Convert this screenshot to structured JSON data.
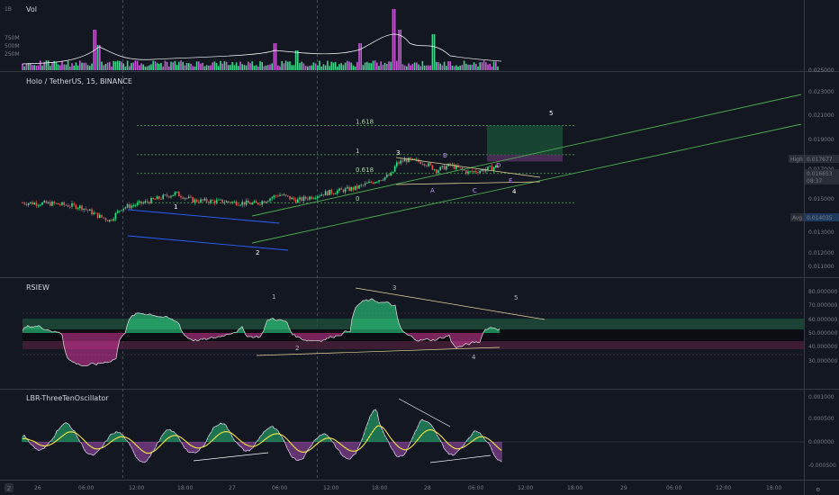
{
  "chart_data": {
    "type": "candlestick",
    "symbol_title": "Holo / TetherUS, 15, BINANCE",
    "volume_panel": {
      "title": "Vol",
      "y_ticks": [
        "1B",
        "750M",
        "500M",
        "250M"
      ]
    },
    "price_panel": {
      "y_ticks": [
        "0.025000",
        "0.023000",
        "0.021000",
        "0.019000",
        "0.017000",
        "0.015000",
        "0.013000",
        "0.012000",
        "0.011000"
      ],
      "badges": {
        "high_label": "High",
        "high_value": "0.017677",
        "last_value": "0.016653",
        "countdown": "08:37",
        "avg_label": "Avg",
        "avg_value": "0.014035"
      },
      "fib_levels": [
        {
          "label": "1.618",
          "price": 0.0205
        },
        {
          "label": "1",
          "price": 0.0177
        },
        {
          "label": "0.618",
          "price": 0.0159
        },
        {
          "label": "0",
          "price": 0.0131
        }
      ],
      "wave_labels_white": [
        "1",
        "2",
        "3",
        "4",
        "5"
      ],
      "wave_labels_purple": [
        "A",
        "B",
        "C",
        "D",
        "E"
      ]
    },
    "rsi_panel": {
      "title": "RSIEW",
      "y_ticks": [
        "80.000000",
        "70.000000",
        "60.000000",
        "50.000000",
        "40.000000",
        "30.000000"
      ],
      "wave_labels": [
        "1",
        "2",
        "3",
        "4",
        "5"
      ]
    },
    "osc_panel": {
      "title": "LBR-ThreeTenOscillator",
      "y_ticks": [
        "0.001000",
        "0.000500",
        "0.000000",
        "-0.000500"
      ]
    },
    "x_axis": {
      "ticks": [
        "26",
        "06:00",
        "12:00",
        "18:00",
        "27",
        "06:00",
        "12:00",
        "18:00",
        "28",
        "06:00",
        "12:00",
        "18:00",
        "29",
        "06:00",
        "12:00",
        "18:00"
      ]
    },
    "colors": {
      "background": "#131722",
      "up": "#26a69a",
      "bull": "#2ee68a",
      "down": "#ef5350",
      "volume_up": "#3bd68a",
      "volume_down": "#c85ad6",
      "fib": "#4caf50",
      "channel_green": "#4caf50",
      "channel_blue": "#2962ff",
      "target_box": "#1e5a3a",
      "wave_label": "#ffffff",
      "wave_label_alt": "#c084fc"
    }
  },
  "corner": {
    "z_label": "Z",
    "settings_label": "⚙"
  }
}
